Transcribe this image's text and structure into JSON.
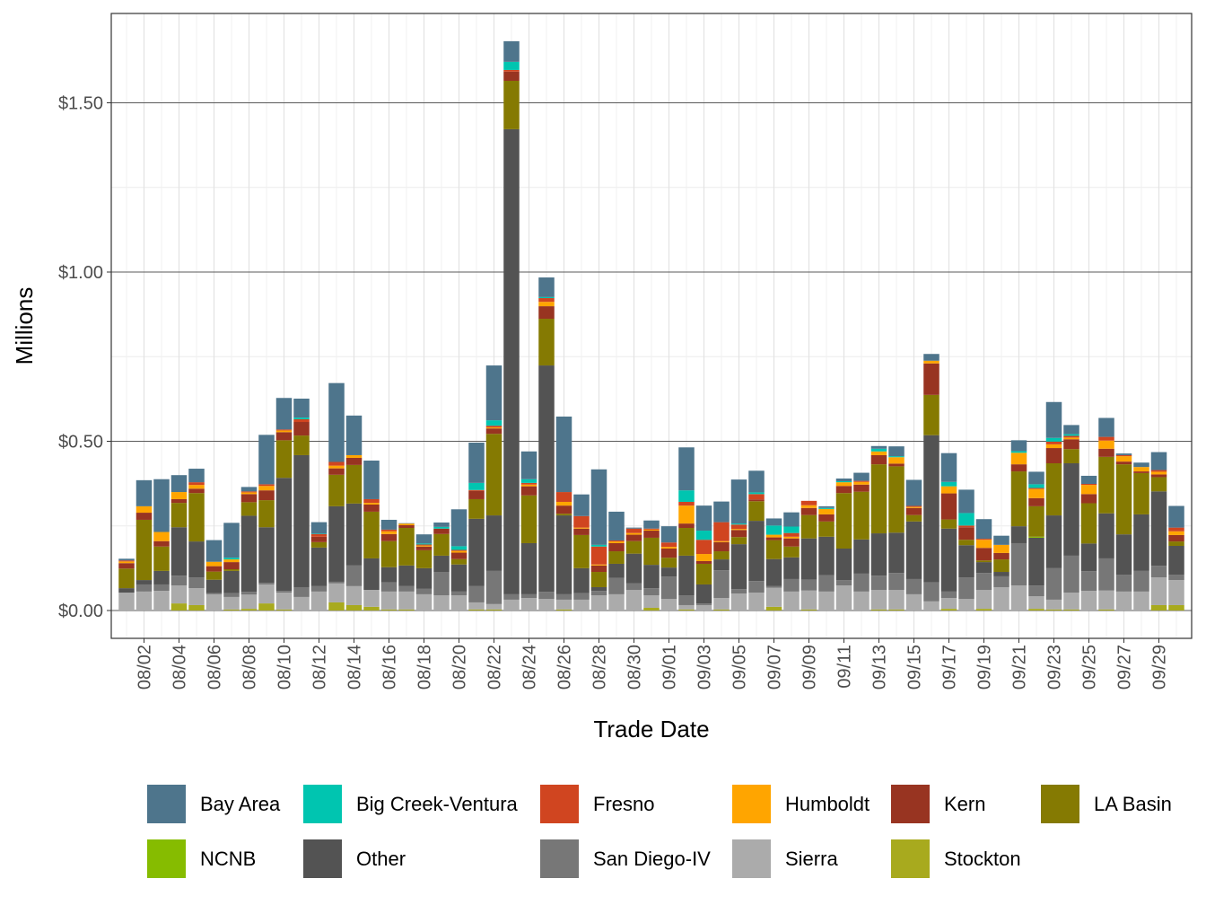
{
  "chart_data": {
    "type": "bar",
    "stacked": true,
    "xlabel": "Trade Date",
    "ylabel": "Millions",
    "ylim": [
      -0.07,
      1.77
    ],
    "y_ticks": [
      0,
      0.5,
      1.0,
      1.5
    ],
    "y_tick_labels": [
      "$0.00",
      "$0.50",
      "$1.00",
      "$1.50"
    ],
    "grid": true,
    "legend_position": "bottom",
    "categories": [
      "08/01",
      "08/02",
      "08/03",
      "08/04",
      "08/05",
      "08/06",
      "08/07",
      "08/08",
      "08/09",
      "08/10",
      "08/11",
      "08/12",
      "08/13",
      "08/14",
      "08/15",
      "08/16",
      "08/17",
      "08/18",
      "08/19",
      "08/20",
      "08/21",
      "08/22",
      "08/23",
      "08/24",
      "08/25",
      "08/26",
      "08/27",
      "08/28",
      "08/29",
      "08/30",
      "08/31",
      "09/01",
      "09/02",
      "09/03",
      "09/04",
      "09/05",
      "09/06",
      "09/07",
      "09/08",
      "09/09",
      "09/10",
      "09/11",
      "09/12",
      "09/13",
      "09/14",
      "09/15",
      "09/16",
      "09/17",
      "09/18",
      "09/19",
      "09/20",
      "09/21",
      "09/22",
      "09/23",
      "09/24",
      "09/25",
      "09/26",
      "09/27",
      "09/28",
      "09/29",
      "09/30"
    ],
    "x_tick_labels": [
      "08/02",
      "08/04",
      "08/06",
      "08/08",
      "08/10",
      "08/12",
      "08/14",
      "08/16",
      "08/18",
      "08/20",
      "08/22",
      "08/24",
      "08/26",
      "08/28",
      "08/30",
      "09/01",
      "09/03",
      "09/05",
      "09/07",
      "09/09",
      "09/11",
      "09/13",
      "09/15",
      "09/17",
      "09/19",
      "09/21",
      "09/23",
      "09/25",
      "09/27",
      "09/29"
    ],
    "series": [
      {
        "name": "Bay Area",
        "color": "#4E758C",
        "values": [
          0.005,
          0.077,
          0.156,
          0.05,
          0.04,
          0.064,
          0.103,
          0.013,
          0.146,
          0.093,
          0.056,
          0.034,
          0.233,
          0.117,
          0.114,
          0.029,
          0.001,
          0.027,
          0.013,
          0.109,
          0.119,
          0.162,
          0.061,
          0.082,
          0.058,
          0.223,
          0.064,
          0.223,
          0.085,
          0.003,
          0.024,
          0.048,
          0.127,
          0.074,
          0.061,
          0.13,
          0.064,
          0.021,
          0.042,
          0,
          0.005,
          0.008,
          0.024,
          0.008,
          0.029,
          0.077,
          0.02,
          0.085,
          0.069,
          0.058,
          0.027,
          0.032,
          0.037,
          0.106,
          0.027,
          0.024,
          0.056,
          0.005,
          0.013,
          0.053,
          0.064
        ]
      },
      {
        "name": "Big Creek-Ventura",
        "color": "#00C5B0",
        "values": [
          0,
          0,
          0,
          0,
          0,
          0,
          0.005,
          0,
          0,
          0,
          0.005,
          0.001,
          0,
          0,
          0,
          0,
          0,
          0.003,
          0.005,
          0.011,
          0.021,
          0.016,
          0.024,
          0.011,
          0.003,
          0,
          0,
          0.005,
          0,
          0,
          0,
          0,
          0.034,
          0.027,
          0,
          0.003,
          0.005,
          0.027,
          0.019,
          0,
          0.003,
          0.003,
          0,
          0.008,
          0.003,
          0,
          0,
          0.013,
          0.037,
          0,
          0,
          0.005,
          0.011,
          0.011,
          0.005,
          0,
          0,
          0,
          0,
          0,
          0
        ]
      },
      {
        "name": "Fresno",
        "color": "#D04520",
        "values": [
          0.003,
          0,
          0,
          0,
          0.008,
          0,
          0,
          0.003,
          0.005,
          0.003,
          0.008,
          0.008,
          0.011,
          0,
          0.011,
          0.005,
          0,
          0.003,
          0,
          0.003,
          0.003,
          0.005,
          0.005,
          0.005,
          0.011,
          0.029,
          0.034,
          0.053,
          0.003,
          0.013,
          0.003,
          0.013,
          0.011,
          0.042,
          0.056,
          0.013,
          0.016,
          0,
          0.011,
          0.013,
          0,
          0,
          0.003,
          0,
          0,
          0.003,
          0,
          0,
          0.005,
          0.003,
          0,
          0,
          0.003,
          0.008,
          0.005,
          0.003,
          0.011,
          0.003,
          0,
          0.005,
          0.011
        ]
      },
      {
        "name": "Humboldt",
        "color": "#FFA500",
        "values": [
          0.005,
          0.019,
          0.027,
          0.021,
          0.011,
          0.013,
          0.008,
          0.005,
          0.013,
          0.005,
          0,
          0,
          0.008,
          0.008,
          0.005,
          0.008,
          0.005,
          0.003,
          0,
          0.005,
          0,
          0.003,
          0,
          0.005,
          0.013,
          0.011,
          0.003,
          0.003,
          0.005,
          0.005,
          0.003,
          0.005,
          0.053,
          0.021,
          0.003,
          0.003,
          0,
          0.008,
          0.005,
          0.008,
          0.016,
          0.011,
          0.008,
          0.011,
          0.019,
          0.003,
          0.008,
          0.021,
          0,
          0.024,
          0.024,
          0.034,
          0.027,
          0.011,
          0.005,
          0.027,
          0.024,
          0.016,
          0.013,
          0.008,
          0.011
        ]
      },
      {
        "name": "Kern",
        "color": "#983421",
        "values": [
          0.016,
          0.021,
          0.016,
          0.011,
          0.013,
          0.016,
          0.021,
          0.024,
          0.029,
          0.024,
          0.04,
          0.016,
          0.019,
          0.021,
          0.021,
          0.021,
          0.008,
          0.011,
          0.016,
          0.019,
          0.024,
          0.016,
          0.027,
          0.027,
          0.037,
          0.024,
          0.019,
          0.019,
          0.024,
          0.019,
          0.021,
          0.027,
          0.013,
          0.008,
          0.027,
          0.021,
          0.005,
          0.008,
          0.024,
          0.021,
          0.021,
          0.021,
          0.021,
          0.027,
          0.008,
          0.021,
          0.093,
          0.077,
          0.037,
          0.037,
          0.019,
          0.021,
          0.024,
          0.045,
          0.029,
          0.027,
          0.024,
          0.008,
          0.005,
          0.008,
          0.019
        ]
      },
      {
        "name": "LA Basin",
        "color": "#857A02",
        "values": [
          0.058,
          0.178,
          0.072,
          0.072,
          0.143,
          0.024,
          0.005,
          0.04,
          0.08,
          0.111,
          0.058,
          0.016,
          0.093,
          0.114,
          0.138,
          0.077,
          0.111,
          0.053,
          0.064,
          0.016,
          0.058,
          0.241,
          0.143,
          0.141,
          0.138,
          0.005,
          0.098,
          0.045,
          0.037,
          0.037,
          0.08,
          0.029,
          0.082,
          0.061,
          0.024,
          0.021,
          0.058,
          0.056,
          0.032,
          0.069,
          0.045,
          0.164,
          0.141,
          0.204,
          0.196,
          0.019,
          0.119,
          0.027,
          0.016,
          0.005,
          0.037,
          0.162,
          0.09,
          0.154,
          0.042,
          0.119,
          0.167,
          0.207,
          0.122,
          0.042,
          0.013
        ]
      },
      {
        "name": "NCNB",
        "color": "#86BC00",
        "values": [
          0,
          0,
          0,
          0,
          0,
          0,
          0,
          0,
          0,
          0,
          0,
          0,
          0,
          0,
          0,
          0,
          0,
          0,
          0,
          0,
          0,
          0,
          0,
          0,
          0,
          0,
          0,
          0,
          0,
          0,
          0,
          0,
          0,
          0,
          0,
          0,
          0,
          0,
          0,
          0,
          0,
          0,
          0,
          0,
          0,
          0,
          0,
          0,
          0,
          0,
          0,
          0,
          0.003,
          0,
          0,
          0,
          0,
          0,
          0,
          0,
          0
        ]
      },
      {
        "name": "Other",
        "color": "#535353",
        "values": [
          0.013,
          0.013,
          0.04,
          0.143,
          0.106,
          0.04,
          0.066,
          0.225,
          0.164,
          0.334,
          0.39,
          0.114,
          0.223,
          0.183,
          0.093,
          0.045,
          0.061,
          0.061,
          0.048,
          0.08,
          0.199,
          0.164,
          1.374,
          0.151,
          0.669,
          0.233,
          0.074,
          0.011,
          0.042,
          0.088,
          0.069,
          0.027,
          0.117,
          0.056,
          0.032,
          0.133,
          0.178,
          0.08,
          0.064,
          0.122,
          0.114,
          0.093,
          0.101,
          0.125,
          0.119,
          0.17,
          0.435,
          0.186,
          0.095,
          0.032,
          0.013,
          0.05,
          0.141,
          0.156,
          0.273,
          0.082,
          0.133,
          0.119,
          0.167,
          0.22,
          0.085
        ]
      },
      {
        "name": "San Diego-IV",
        "color": "#777777",
        "values": [
          0,
          0.021,
          0.019,
          0.029,
          0.032,
          0.003,
          0.011,
          0.008,
          0.005,
          0.005,
          0.029,
          0.016,
          0.005,
          0.061,
          0,
          0.027,
          0.016,
          0.016,
          0.069,
          0.011,
          0.048,
          0.098,
          0.016,
          0.011,
          0.021,
          0.016,
          0.019,
          0.013,
          0.048,
          0.019,
          0.021,
          0.066,
          0.029,
          0.005,
          0.082,
          0.013,
          0.034,
          0.005,
          0.037,
          0.032,
          0.048,
          0.016,
          0.053,
          0.042,
          0.05,
          0.045,
          0.056,
          0.019,
          0.064,
          0.05,
          0.032,
          0.125,
          0.032,
          0.093,
          0.109,
          0.058,
          0.095,
          0.05,
          0.061,
          0.034,
          0.016
        ]
      },
      {
        "name": "Sierra",
        "color": "#ABABAB",
        "values": [
          0.053,
          0.056,
          0.058,
          0.053,
          0.05,
          0.048,
          0.037,
          0.042,
          0.056,
          0.05,
          0.04,
          0.056,
          0.056,
          0.056,
          0.05,
          0.053,
          0.053,
          0.048,
          0.045,
          0.045,
          0.021,
          0.016,
          0.032,
          0.037,
          0.034,
          0.029,
          0.032,
          0.045,
          0.048,
          0.061,
          0.037,
          0.034,
          0.013,
          0.016,
          0.034,
          0.05,
          0.053,
          0.056,
          0.056,
          0.056,
          0.056,
          0.074,
          0.056,
          0.058,
          0.058,
          0.048,
          0.027,
          0.032,
          0.034,
          0.056,
          0.069,
          0.074,
          0.037,
          0.029,
          0.05,
          0.058,
          0.056,
          0.056,
          0.056,
          0.082,
          0.074
        ]
      },
      {
        "name": "Stockton",
        "color": "#A8AA1E",
        "values": [
          0,
          0,
          0,
          0.021,
          0.016,
          0,
          0.003,
          0.005,
          0.021,
          0.003,
          0,
          0,
          0.024,
          0.016,
          0.011,
          0.003,
          0.003,
          0,
          0,
          0,
          0.003,
          0.003,
          0,
          0,
          0,
          0.003,
          0,
          0,
          0,
          0,
          0.008,
          0,
          0.003,
          0,
          0.003,
          0,
          0,
          0.011,
          0,
          0.003,
          0,
          0,
          0,
          0.003,
          0.003,
          0,
          0,
          0.005,
          0,
          0.005,
          0,
          0,
          0.005,
          0.003,
          0.003,
          0,
          0.003,
          0,
          0,
          0.016,
          0.016
        ]
      }
    ]
  }
}
